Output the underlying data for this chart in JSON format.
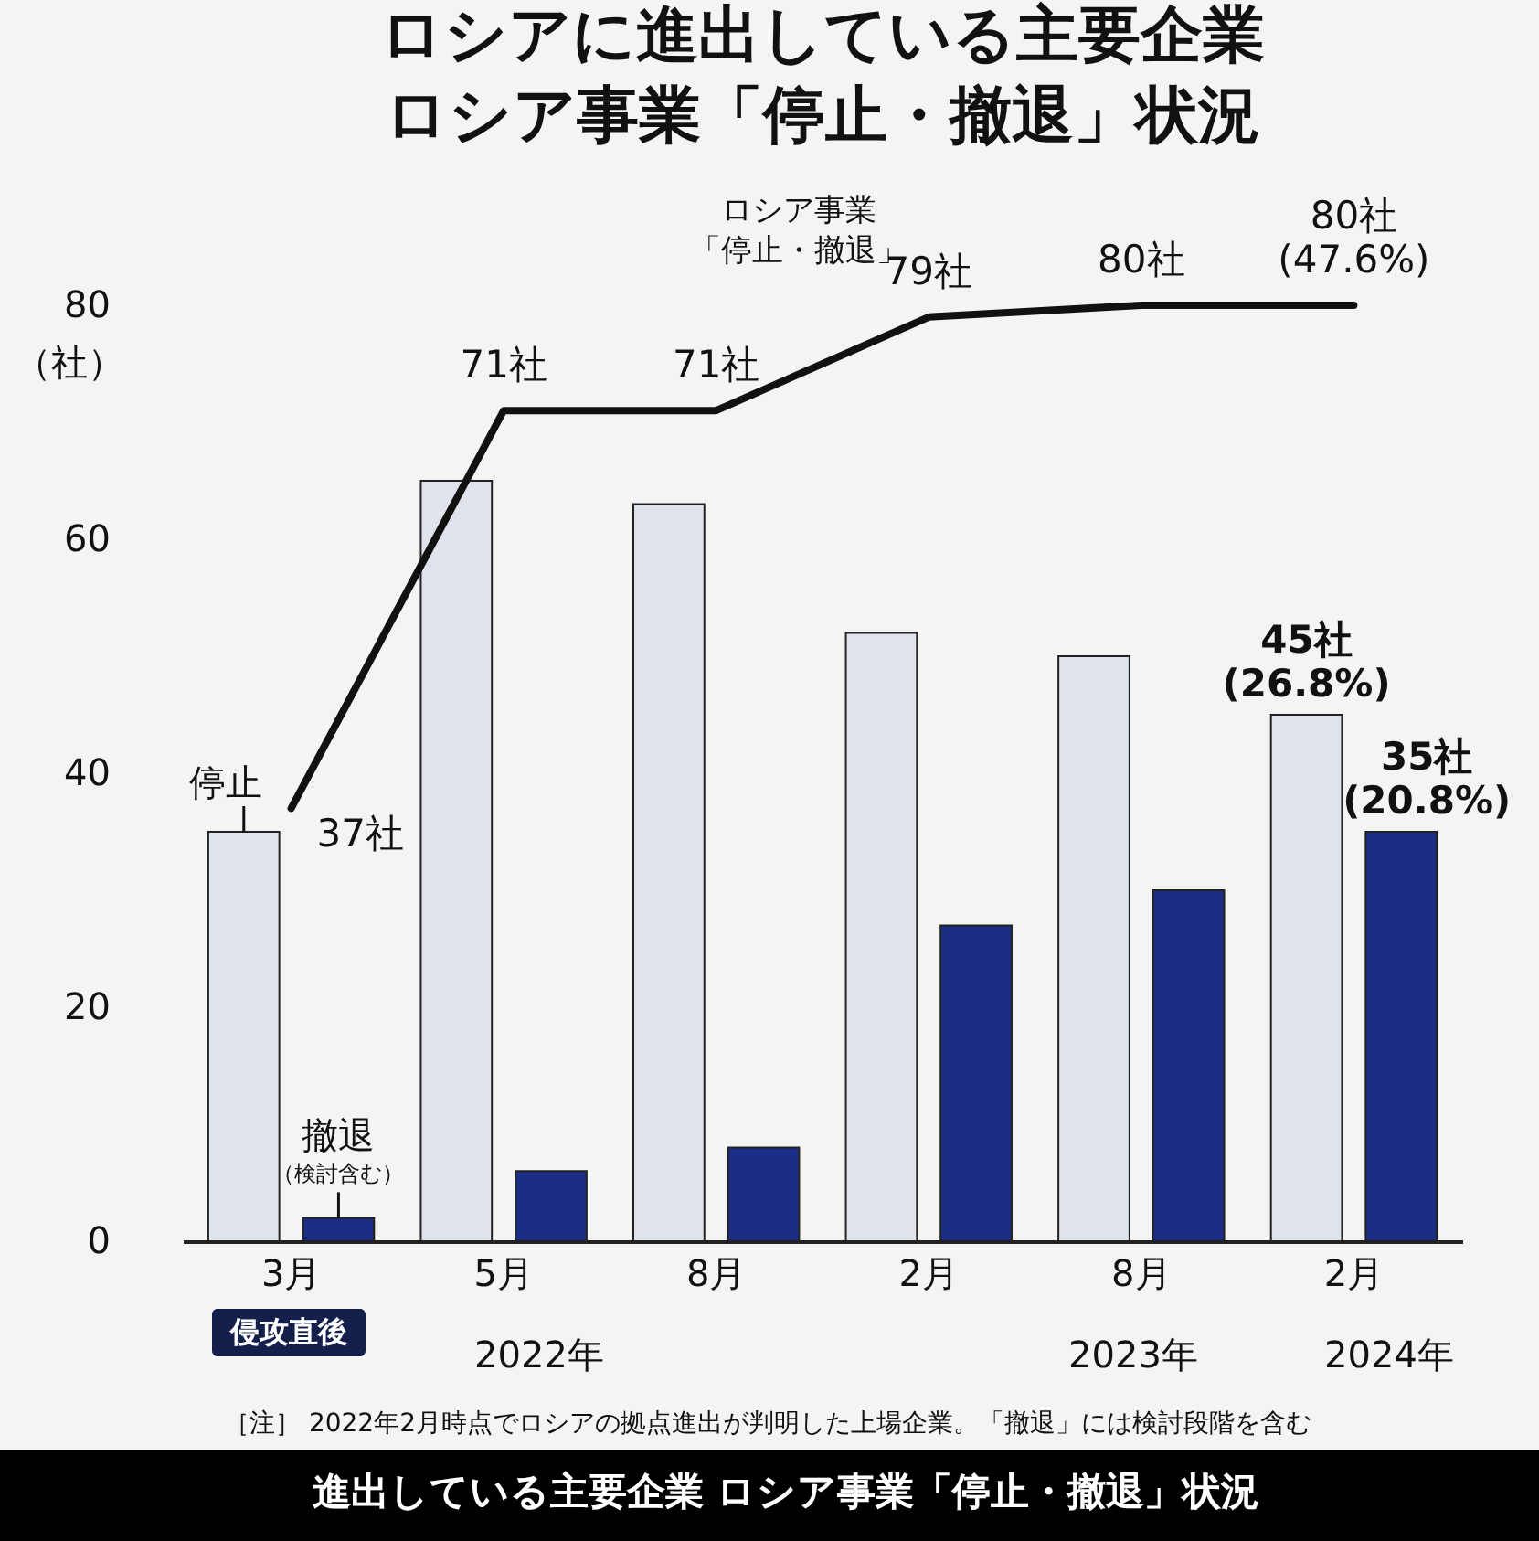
{
  "chart_data": {
    "type": "bar",
    "title": "ロシアに進出している主要企業ロシア事業「停止・撤退」状況",
    "ylabel": "（社）",
    "categories": [
      "3月",
      "5月",
      "8月",
      "2月",
      "8月",
      "2月"
    ],
    "ylim": [
      0,
      80
    ],
    "yticks": [
      0,
      20,
      40,
      60,
      80
    ],
    "grid": false,
    "legend": false,
    "series": [
      {
        "name": "停止",
        "color": "#dfe4ec",
        "values": [
          35,
          65,
          63,
          52,
          50,
          45
        ],
        "value_labels": [
          null,
          null,
          null,
          null,
          null,
          "45社(26.8%)"
        ]
      },
      {
        "name": "撤退",
        "color": "#1c2d86",
        "values": [
          2,
          6,
          8,
          27,
          30,
          35
        ],
        "value_labels": [
          null,
          null,
          null,
          null,
          null,
          "35社(20.8%)"
        ]
      },
      {
        "name": "ロシア事業「停止・撤退」",
        "type": "line",
        "color": "#111111",
        "values": [
          37,
          71,
          71,
          79,
          80,
          80
        ],
        "value_labels": [
          "37社",
          "71社",
          "71社",
          "79社",
          "80社",
          "80社(47.6%)"
        ]
      }
    ],
    "annotations": [
      "（検討含む）",
      "侵攻直後",
      "2022年",
      "2023年",
      "2024年",
      "［注］ 2022年2月時点でロシアの拠点進出が判明した上場企業。「撤退」には検討段階を含む",
      "進出している主要企業 ロシア事業「停止・撤退」状況"
    ]
  }
}
